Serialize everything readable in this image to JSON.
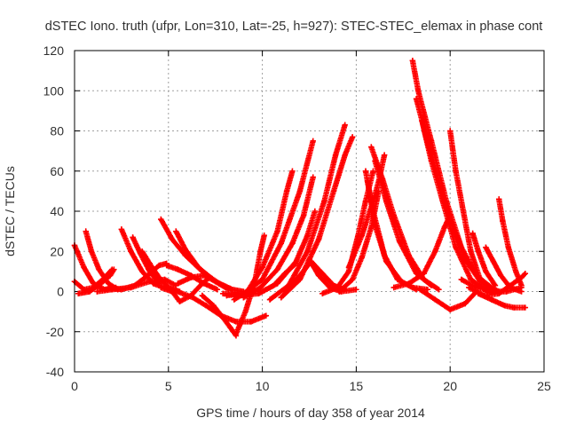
{
  "chart_data": {
    "type": "scatter",
    "title": "dSTEC Iono. truth (ufpr, Lon=310, Lat=-25, h=927): STEC-STEC_elemax in phase cont",
    "xlabel": "GPS time / hours of day 358 of year 2014",
    "ylabel": "dSTEC  / TECUs",
    "xlim": [
      0,
      25
    ],
    "ylim": [
      -40,
      120
    ],
    "xticks": [
      0,
      5,
      10,
      15,
      20,
      25
    ],
    "yticks": [
      -40,
      -20,
      0,
      20,
      40,
      60,
      80,
      100,
      120
    ],
    "xtick_labels": [
      "0",
      "5",
      "10",
      "15",
      "20",
      "25"
    ],
    "ytick_labels": [
      "-40",
      "-20",
      "0",
      "20",
      "40",
      "60",
      "80",
      "100",
      "120"
    ],
    "grid": true,
    "marker": "+",
    "color": "#ff0000",
    "series": [
      {
        "points": [
          [
            0.0,
            23
          ],
          [
            0.5,
            12
          ],
          [
            1.0,
            4
          ],
          [
            1.6,
            1
          ],
          [
            2.2,
            2
          ]
        ]
      },
      {
        "points": [
          [
            0.0,
            5
          ],
          [
            0.5,
            1
          ],
          [
            1.0,
            2
          ],
          [
            1.5,
            6
          ],
          [
            2.0,
            11
          ]
        ]
      },
      {
        "points": [
          [
            0.6,
            30
          ],
          [
            0.9,
            20
          ],
          [
            1.3,
            11
          ],
          [
            1.8,
            4
          ],
          [
            2.3,
            1
          ]
        ]
      },
      {
        "points": [
          [
            0.2,
            -1
          ],
          [
            0.8,
            0
          ],
          [
            1.4,
            4
          ],
          [
            1.9,
            8
          ],
          [
            2.1,
            11
          ]
        ]
      },
      {
        "points": [
          [
            2.5,
            31
          ],
          [
            3.0,
            20
          ],
          [
            3.6,
            10
          ],
          [
            4.2,
            4
          ],
          [
            4.8,
            2
          ]
        ]
      },
      {
        "points": [
          [
            3.1,
            27
          ],
          [
            3.5,
            19
          ],
          [
            4.0,
            10
          ],
          [
            4.5,
            4
          ]
        ]
      },
      {
        "points": [
          [
            3.6,
            20
          ],
          [
            4.0,
            14
          ],
          [
            4.5,
            7
          ],
          [
            5.0,
            2
          ],
          [
            5.6,
            0
          ]
        ]
      },
      {
        "points": [
          [
            1.9,
            2
          ],
          [
            2.5,
            1
          ],
          [
            3.2,
            3
          ],
          [
            3.9,
            8
          ],
          [
            4.5,
            13
          ],
          [
            4.9,
            14
          ]
        ]
      },
      {
        "points": [
          [
            1.2,
            0
          ],
          [
            2.0,
            1
          ],
          [
            3.0,
            2
          ],
          [
            4.0,
            5
          ],
          [
            4.8,
            6
          ],
          [
            5.4,
            3
          ]
        ]
      },
      {
        "points": [
          [
            4.6,
            36
          ],
          [
            5.2,
            26
          ],
          [
            5.9,
            18
          ],
          [
            6.8,
            10
          ],
          [
            7.7,
            4
          ],
          [
            8.4,
            1
          ]
        ]
      },
      {
        "points": [
          [
            5.4,
            30
          ],
          [
            5.9,
            21
          ],
          [
            6.6,
            12
          ],
          [
            7.5,
            5
          ],
          [
            8.4,
            1
          ],
          [
            9.0,
            0
          ]
        ]
      },
      {
        "points": [
          [
            4.9,
            13
          ],
          [
            5.5,
            11
          ],
          [
            6.2,
            8
          ],
          [
            6.9,
            4
          ],
          [
            7.6,
            1
          ]
        ]
      },
      {
        "points": [
          [
            4.6,
            2
          ],
          [
            5.2,
            0
          ],
          [
            5.6,
            -5
          ],
          [
            6.2,
            -2
          ],
          [
            6.8,
            4
          ],
          [
            7.2,
            7
          ]
        ]
      },
      {
        "points": [
          [
            5.5,
            4
          ],
          [
            6.2,
            7
          ],
          [
            6.9,
            8
          ],
          [
            7.5,
            5
          ],
          [
            8.2,
            1
          ]
        ]
      },
      {
        "points": [
          [
            5.2,
            1
          ],
          [
            6.3,
            -3
          ],
          [
            7.0,
            -7
          ],
          [
            7.8,
            -12
          ],
          [
            8.6,
            -15
          ],
          [
            9.4,
            -15
          ],
          [
            10.2,
            -12
          ]
        ]
      },
      {
        "points": [
          [
            6.8,
            -2
          ],
          [
            7.4,
            -7
          ],
          [
            7.9,
            -13
          ],
          [
            8.3,
            -18
          ],
          [
            8.6,
            -22
          ]
        ]
      },
      {
        "points": [
          [
            8.6,
            -21
          ],
          [
            9.1,
            -10
          ],
          [
            9.6,
            5
          ],
          [
            9.9,
            20
          ],
          [
            10.1,
            28
          ]
        ]
      },
      {
        "points": [
          [
            8.5,
            -4
          ],
          [
            9.2,
            0
          ],
          [
            10.0,
            12
          ],
          [
            10.8,
            30
          ],
          [
            11.3,
            50
          ],
          [
            11.6,
            60
          ]
        ]
      },
      {
        "points": [
          [
            7.9,
            -1
          ],
          [
            8.8,
            -2
          ],
          [
            9.8,
            -1
          ],
          [
            10.6,
            3
          ],
          [
            11.2,
            9
          ],
          [
            11.8,
            14
          ]
        ]
      },
      {
        "points": [
          [
            8.1,
            -2
          ],
          [
            9.0,
            -1
          ],
          [
            10.0,
            6
          ],
          [
            11.0,
            24
          ],
          [
            12.0,
            50
          ],
          [
            12.7,
            75
          ]
        ]
      },
      {
        "points": [
          [
            9.0,
            -3
          ],
          [
            9.9,
            2
          ],
          [
            10.8,
            11
          ],
          [
            11.6,
            24
          ],
          [
            12.2,
            38
          ],
          [
            12.7,
            57
          ]
        ]
      },
      {
        "points": [
          [
            9.8,
            -1
          ],
          [
            10.8,
            4
          ],
          [
            11.8,
            15
          ],
          [
            12.4,
            28
          ],
          [
            12.8,
            40
          ]
        ]
      },
      {
        "points": [
          [
            10.4,
            -4
          ],
          [
            11.4,
            3
          ],
          [
            12.4,
            20
          ],
          [
            13.3,
            45
          ],
          [
            13.9,
            68
          ],
          [
            14.4,
            83
          ]
        ]
      },
      {
        "points": [
          [
            11.0,
            -3
          ],
          [
            12.0,
            6
          ],
          [
            13.0,
            26
          ],
          [
            13.8,
            50
          ],
          [
            14.4,
            68
          ],
          [
            14.8,
            77
          ]
        ]
      },
      {
        "points": [
          [
            11.2,
            0
          ],
          [
            12.0,
            8
          ],
          [
            12.6,
            15
          ],
          [
            13.2,
            9
          ],
          [
            13.8,
            3
          ],
          [
            14.4,
            1
          ]
        ]
      },
      {
        "points": [
          [
            12.5,
            16
          ],
          [
            13.0,
            8
          ],
          [
            13.6,
            2
          ],
          [
            14.2,
            0
          ],
          [
            15.0,
            1
          ]
        ]
      },
      {
        "points": [
          [
            13.2,
            -1
          ],
          [
            14.0,
            2
          ],
          [
            14.6,
            10
          ],
          [
            15.1,
            28
          ],
          [
            15.5,
            45
          ],
          [
            15.9,
            60
          ]
        ]
      },
      {
        "points": [
          [
            14.1,
            0
          ],
          [
            14.8,
            6
          ],
          [
            15.3,
            17
          ],
          [
            15.8,
            32
          ],
          [
            16.2,
            50
          ]
        ]
      },
      {
        "points": [
          [
            15.5,
            60
          ],
          [
            15.9,
            40
          ],
          [
            16.5,
            18
          ],
          [
            17.2,
            6
          ],
          [
            18.0,
            2
          ],
          [
            18.8,
            1
          ]
        ]
      },
      {
        "points": [
          [
            15.6,
            55
          ],
          [
            16.0,
            33
          ],
          [
            16.6,
            15
          ],
          [
            17.4,
            5
          ],
          [
            18.2,
            1
          ]
        ]
      },
      {
        "points": [
          [
            15.8,
            72
          ],
          [
            16.4,
            56
          ],
          [
            17.0,
            38
          ],
          [
            17.8,
            18
          ],
          [
            18.6,
            6
          ],
          [
            19.4,
            1
          ]
        ]
      },
      {
        "points": [
          [
            16.0,
            65
          ],
          [
            16.6,
            45
          ],
          [
            17.3,
            25
          ],
          [
            18.2,
            9
          ],
          [
            19.0,
            3
          ]
        ]
      },
      {
        "points": [
          [
            16.5,
            68
          ],
          [
            16.2,
            55
          ],
          [
            15.9,
            45
          ],
          [
            15.3,
            28
          ],
          [
            14.6,
            12
          ]
        ]
      },
      {
        "points": [
          [
            18.0,
            115
          ],
          [
            18.3,
            100
          ],
          [
            19.0,
            75
          ],
          [
            19.8,
            45
          ],
          [
            20.6,
            22
          ],
          [
            21.4,
            8
          ],
          [
            22.2,
            2
          ]
        ]
      },
      {
        "points": [
          [
            18.2,
            96
          ],
          [
            18.7,
            78
          ],
          [
            19.3,
            58
          ],
          [
            20.0,
            36
          ],
          [
            20.8,
            16
          ],
          [
            21.6,
            5
          ],
          [
            22.6,
            0
          ]
        ]
      },
      {
        "points": [
          [
            18.5,
            85
          ],
          [
            19.0,
            65
          ],
          [
            19.6,
            45
          ],
          [
            20.3,
            22
          ],
          [
            21.1,
            6
          ],
          [
            22.0,
            0
          ]
        ]
      },
      {
        "points": [
          [
            17.0,
            2
          ],
          [
            17.8,
            4
          ],
          [
            18.6,
            9
          ],
          [
            19.2,
            20
          ],
          [
            19.7,
            32
          ],
          [
            20.0,
            38
          ]
        ]
      },
      {
        "points": [
          [
            18.4,
            1
          ],
          [
            19.2,
            -4
          ],
          [
            20.0,
            -9
          ],
          [
            20.8,
            -6
          ],
          [
            21.4,
            0
          ]
        ]
      },
      {
        "points": [
          [
            20.0,
            80
          ],
          [
            20.3,
            60
          ],
          [
            20.7,
            40
          ],
          [
            21.1,
            20
          ],
          [
            21.6,
            6
          ],
          [
            22.2,
            0
          ]
        ]
      },
      {
        "points": [
          [
            21.2,
            29
          ],
          [
            21.5,
            20
          ],
          [
            21.9,
            10
          ],
          [
            22.4,
            3
          ]
        ]
      },
      {
        "points": [
          [
            21.9,
            22
          ],
          [
            22.3,
            15
          ],
          [
            22.7,
            8
          ],
          [
            23.2,
            2
          ],
          [
            23.8,
            0
          ]
        ]
      },
      {
        "points": [
          [
            22.6,
            46
          ],
          [
            22.8,
            35
          ],
          [
            23.1,
            22
          ],
          [
            23.5,
            10
          ],
          [
            23.8,
            3
          ]
        ]
      },
      {
        "points": [
          [
            21.5,
            -1
          ],
          [
            22.2,
            -4
          ],
          [
            22.9,
            -7
          ],
          [
            23.4,
            -8
          ],
          [
            24.0,
            -8
          ]
        ]
      },
      {
        "points": [
          [
            21.0,
            2
          ],
          [
            21.8,
            -2
          ],
          [
            22.6,
            -1
          ],
          [
            23.2,
            3
          ],
          [
            23.8,
            7
          ],
          [
            24.0,
            9
          ]
        ]
      },
      {
        "points": [
          [
            20.6,
            6
          ],
          [
            21.4,
            2
          ],
          [
            22.2,
            0
          ],
          [
            23.0,
            0
          ],
          [
            23.8,
            2
          ]
        ]
      }
    ]
  }
}
